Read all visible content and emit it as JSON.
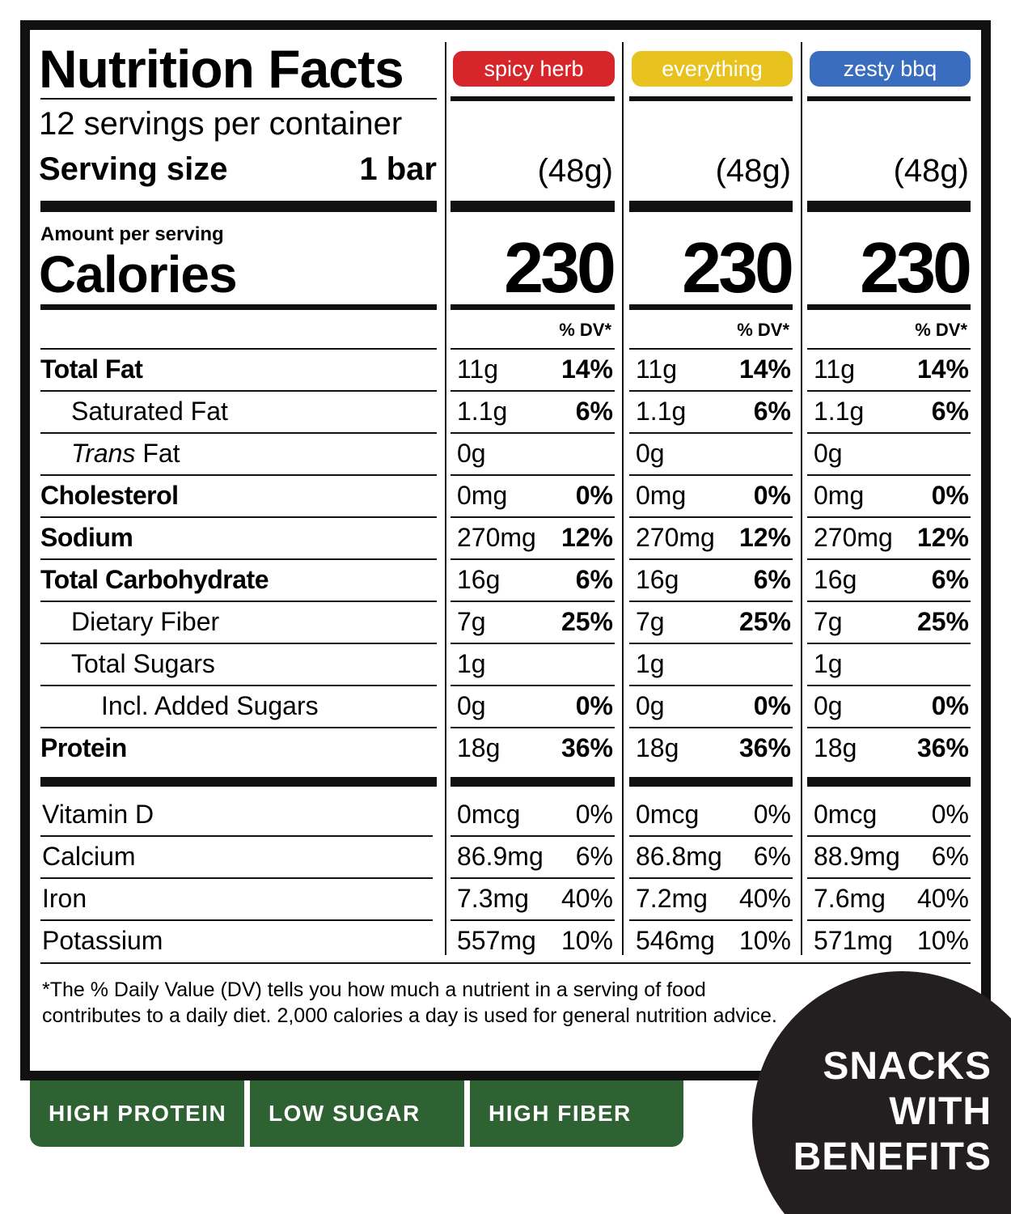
{
  "title": "Nutrition Facts",
  "servings": "12 servings per container",
  "serving_size_label": "Serving size",
  "serving_size": "1 bar",
  "amount_per_serving": "Amount per serving",
  "calories_label": "Calories",
  "flavors": [
    {
      "name": "spicy herb",
      "color": "#d7262b",
      "weight": "(48g)",
      "calories": 230,
      "dv_header": "% DV*"
    },
    {
      "name": "everything",
      "color": "#e8c31f",
      "weight": "(48g)",
      "calories": 230,
      "dv_header": "% DV*"
    },
    {
      "name": "zesty bbq",
      "color": "#3a6dbd",
      "weight": "(48g)",
      "calories": 230,
      "dv_header": "% DV*"
    }
  ],
  "nutrients": [
    {
      "name": "Total Fat",
      "bold": true,
      "indent": 0,
      "values": [
        [
          "11g",
          "14%"
        ],
        [
          "11g",
          "14%"
        ],
        [
          "11g",
          "14%"
        ]
      ]
    },
    {
      "name": "Saturated Fat",
      "bold": false,
      "indent": 1,
      "values": [
        [
          "1.1g",
          "6%"
        ],
        [
          "1.1g",
          "6%"
        ],
        [
          "1.1g",
          "6%"
        ]
      ]
    },
    {
      "italic": "Trans",
      "name": "Fat",
      "bold": false,
      "indent": 1,
      "values": [
        [
          "0g"
        ],
        [
          "0g"
        ],
        [
          "0g"
        ]
      ]
    },
    {
      "name": "Cholesterol",
      "bold": true,
      "indent": 0,
      "values": [
        [
          "0mg",
          "0%"
        ],
        [
          "0mg",
          "0%"
        ],
        [
          "0mg",
          "0%"
        ]
      ]
    },
    {
      "name": "Sodium",
      "bold": true,
      "indent": 0,
      "values": [
        [
          "270mg",
          "12%"
        ],
        [
          "270mg",
          "12%"
        ],
        [
          "270mg",
          "12%"
        ]
      ]
    },
    {
      "name": "Total Carbohydrate",
      "bold": true,
      "indent": 0,
      "values": [
        [
          "16g",
          "6%"
        ],
        [
          "16g",
          "6%"
        ],
        [
          "16g",
          "6%"
        ]
      ]
    },
    {
      "name": "Dietary Fiber",
      "bold": false,
      "indent": 1,
      "values": [
        [
          "7g",
          "25%"
        ],
        [
          "7g",
          "25%"
        ],
        [
          "7g",
          "25%"
        ]
      ]
    },
    {
      "name": "Total Sugars",
      "bold": false,
      "indent": 1,
      "values": [
        [
          "1g"
        ],
        [
          "1g"
        ],
        [
          "1g"
        ]
      ]
    },
    {
      "name": "Incl. Added Sugars",
      "bold": false,
      "indent": 2,
      "values": [
        [
          "0g",
          "0%"
        ],
        [
          "0g",
          "0%"
        ],
        [
          "0g",
          "0%"
        ]
      ]
    },
    {
      "name": "Protein",
      "bold": true,
      "indent": 0,
      "values": [
        [
          "18g",
          "36%"
        ],
        [
          "18g",
          "36%"
        ],
        [
          "18g",
          "36%"
        ]
      ]
    }
  ],
  "vitamins": [
    {
      "name": "Vitamin D",
      "values": [
        [
          "0mcg",
          "0%"
        ],
        [
          "0mcg",
          "0%"
        ],
        [
          "0mcg",
          "0%"
        ]
      ]
    },
    {
      "name": "Calcium",
      "values": [
        [
          "86.9mg",
          "6%"
        ],
        [
          "86.8mg",
          "6%"
        ],
        [
          "88.9mg",
          "6%"
        ]
      ]
    },
    {
      "name": "Iron",
      "values": [
        [
          "7.3mg",
          "40%"
        ],
        [
          "7.2mg",
          "40%"
        ],
        [
          "7.6mg",
          "40%"
        ]
      ]
    },
    {
      "name": "Potassium",
      "values": [
        [
          "557mg",
          "10%"
        ],
        [
          "546mg",
          "10%"
        ],
        [
          "571mg",
          "10%"
        ]
      ]
    }
  ],
  "footnote": "*The % Daily Value (DV) tells you how much a nutrient in a serving of food contributes to a daily diet. 2,000 calories a day is used for general nutrition advice.",
  "badges": [
    "HIGH PROTEIN",
    "LOW SUGAR",
    "HIGH FIBER"
  ],
  "slogan": [
    "SNACKS",
    "WITH",
    "BENEFITS"
  ]
}
